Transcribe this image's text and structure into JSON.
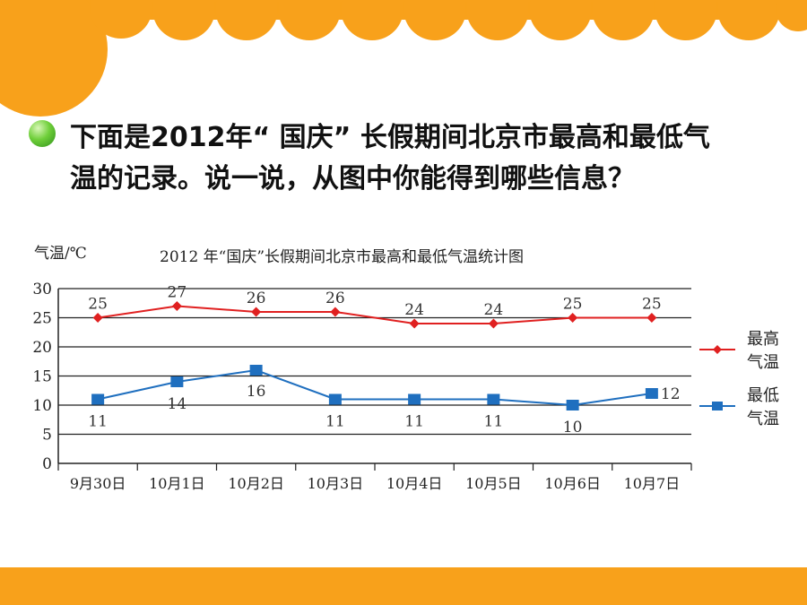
{
  "question": {
    "line1": "下面是2012年“ 国庆” 长假期间北京市最高和最低气",
    "line2": "温的记录。说一说，从图中你能得到哪些信息？"
  },
  "colors": {
    "orange": "#f8a11b",
    "high_series": "#e02020",
    "low_series": "#1f6fbf"
  },
  "icons": {
    "bullet": "green-ball-icon"
  },
  "chart_data": {
    "type": "line",
    "title": "2012 年“国庆”长假期间北京市最高和最低气温统计图",
    "ylabel": "气温/℃",
    "xlabel": "",
    "ylim": [
      0,
      30
    ],
    "yticks": [
      "0",
      "5",
      "10",
      "15",
      "20",
      "25",
      "30"
    ],
    "grid": true,
    "legend_position": "right",
    "categories": [
      "9月30日",
      "10月1日",
      "10月2日",
      "10月3日",
      "10月4日",
      "10月5日",
      "10月6日",
      "10月7日"
    ],
    "series": [
      {
        "name": "最高气温",
        "name_lines": [
          "最高",
          "气温"
        ],
        "marker": "diamond",
        "values": [
          25,
          27,
          26,
          26,
          24,
          24,
          25,
          25
        ],
        "labels": [
          "25",
          "27",
          "26",
          "26",
          "24",
          "24",
          "25",
          "25"
        ]
      },
      {
        "name": "最低气温",
        "name_lines": [
          "最低",
          "气温"
        ],
        "marker": "square",
        "values": [
          11,
          14,
          16,
          11,
          11,
          11,
          10,
          12
        ],
        "labels": [
          "11",
          "14",
          "16",
          "11",
          "11",
          "11",
          "10",
          "12"
        ]
      }
    ]
  }
}
